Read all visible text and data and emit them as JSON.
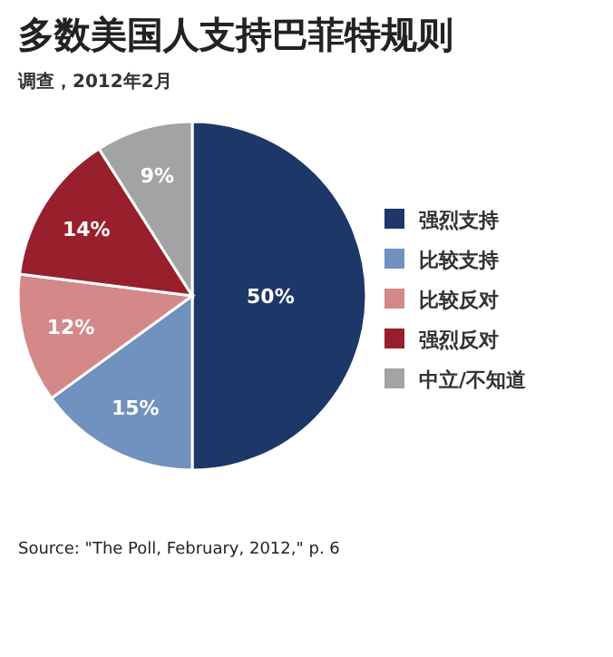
{
  "chart_data": {
    "type": "pie",
    "title": "多数美国人支持巴菲特规则",
    "subtitle": "调查，2012年2月",
    "categories": [
      "强烈支持",
      "比较支持",
      "比较反对",
      "强烈反对",
      "中立/不知道"
    ],
    "values": [
      50,
      15,
      12,
      14,
      9
    ],
    "value_labels": [
      "50%",
      "15%",
      "12%",
      "14%",
      "9%"
    ],
    "colors": [
      "#1d3768",
      "#7191be",
      "#d48888",
      "#97202c",
      "#a3a3a3"
    ],
    "legend": "right",
    "annotations": [
      "Source: \"The Poll, February, 2012,\" p. 6"
    ]
  }
}
